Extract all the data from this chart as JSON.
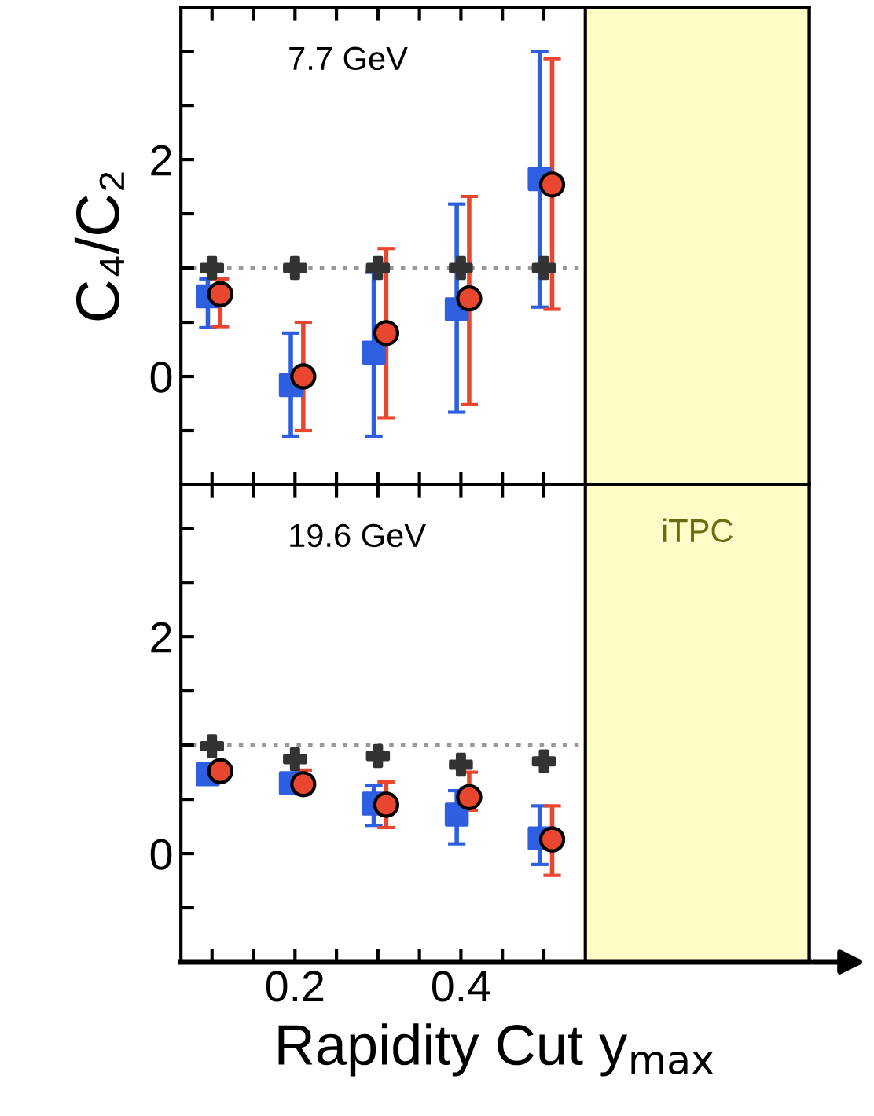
{
  "chart_data": [
    {
      "type": "scatter",
      "ylabel": "C₄/C₂",
      "annotations": [
        "7.7 GeV"
      ],
      "xlim": [
        0.0625,
        0.82
      ],
      "ylim": [
        -1.0,
        3.4
      ],
      "yticks": [
        {
          "value": -1.0,
          "label": null
        },
        {
          "value": -0.5,
          "label": null
        },
        0,
        {
          "value": 0.5,
          "label": null
        },
        {
          "value": 1.0,
          "label": null
        },
        {
          "value": 1.5,
          "label": null
        },
        2,
        {
          "value": 2.5,
          "label": null
        },
        {
          "value": 3.0,
          "label": null
        }
      ],
      "xticks": [
        {
          "value": 0.1,
          "label": null
        },
        {
          "value": 0.15,
          "label": null
        },
        {
          "value": 0.2,
          "label": null
        },
        {
          "value": 0.25,
          "label": null
        },
        {
          "value": 0.3,
          "label": null
        },
        {
          "value": 0.35,
          "label": null
        },
        {
          "value": 0.4,
          "label": null
        },
        {
          "value": 0.45,
          "label": null
        },
        {
          "value": 0.5,
          "label": null
        }
      ],
      "tick_labels": "y",
      "grid": false,
      "legend": false,
      "ref_lines": [
        {
          "axis": "y",
          "value": 1,
          "color": "#999999",
          "line_style": "dotted"
        }
      ],
      "bands": [
        {
          "axis": "x",
          "from": 0.55,
          "to": 0.82,
          "color": "#fffcc8"
        }
      ],
      "series": [
        {
          "color": "#333333",
          "marker": "cross",
          "x": [
            0.1,
            0.2,
            0.3,
            0.4,
            0.5
          ],
          "values": [
            1.0,
            1.0,
            1.0,
            1.0,
            1.0
          ]
        },
        {
          "color": "#2e5fe0",
          "marker": "square",
          "x": [
            0.095,
            0.195,
            0.295,
            0.395,
            0.495
          ],
          "values": [
            0.74,
            -0.08,
            0.22,
            0.62,
            1.82
          ],
          "errors": [
            [
              0.45,
              0.9
            ],
            [
              -0.55,
              0.4
            ],
            [
              -0.55,
              0.96
            ],
            [
              -0.33,
              1.59
            ],
            [
              0.64,
              3.0
            ]
          ]
        },
        {
          "color": "#e8462e",
          "marker": "circle",
          "x": [
            0.11,
            0.21,
            0.31,
            0.41,
            0.51
          ],
          "values": [
            0.76,
            0.0,
            0.4,
            0.72,
            1.77
          ],
          "errors": [
            [
              0.46,
              0.9
            ],
            [
              -0.5,
              0.5
            ],
            [
              -0.38,
              1.18
            ],
            [
              -0.26,
              1.66
            ],
            [
              0.62,
              2.93
            ]
          ]
        }
      ]
    },
    {
      "type": "scatter",
      "xlabel": "Rapidity Cut y$_{max}$",
      "annotations": [
        "19.6 GeV"
      ],
      "xlim": [
        0.0625,
        0.82
      ],
      "ylim": [
        -1.0,
        3.4
      ],
      "yticks": [
        {
          "value": -1.0,
          "label": null
        },
        {
          "value": -0.5,
          "label": null
        },
        0,
        {
          "value": 0.5,
          "label": null
        },
        {
          "value": 1.0,
          "label": null
        },
        {
          "value": 1.5,
          "label": null
        },
        2,
        {
          "value": 2.5,
          "label": null
        },
        {
          "value": 3.0,
          "label": null
        }
      ],
      "xticks": [
        {
          "value": 0.1,
          "label": null
        },
        {
          "value": 0.15,
          "label": null
        },
        0.2,
        {
          "value": 0.25,
          "label": null
        },
        {
          "value": 0.3,
          "label": null
        },
        {
          "value": 0.35,
          "label": null
        },
        0.4,
        {
          "value": 0.45,
          "label": null
        },
        {
          "value": 0.5,
          "label": null
        }
      ],
      "grid": false,
      "legend": false,
      "ref_lines": [
        {
          "axis": "y",
          "value": 1,
          "color": "#999999",
          "line_style": "dotted"
        }
      ],
      "bands": [
        {
          "axis": "x",
          "from": 0.55,
          "to": 0.82,
          "label": "iTPC",
          "color": "#fffcc8"
        }
      ],
      "series": [
        {
          "color": "#333333",
          "marker": "cross",
          "x": [
            0.1,
            0.2,
            0.3,
            0.4,
            0.5
          ],
          "values": [
            0.99,
            0.87,
            0.9,
            0.82,
            0.85
          ]
        },
        {
          "color": "#2e5fe0",
          "marker": "square",
          "x": [
            0.095,
            0.195,
            0.295,
            0.395,
            0.495
          ],
          "values": [
            0.73,
            0.65,
            0.46,
            0.36,
            0.14
          ],
          "errors": [
            null,
            null,
            [
              0.26,
              0.63
            ],
            [
              0.09,
              0.58
            ],
            [
              -0.1,
              0.44
            ]
          ]
        },
        {
          "color": "#e8462e",
          "marker": "circle",
          "x": [
            0.11,
            0.21,
            0.31,
            0.41,
            0.51
          ],
          "values": [
            0.76,
            0.64,
            0.45,
            0.52,
            0.13
          ],
          "errors": [
            null,
            [
              0.55,
              0.77
            ],
            [
              0.24,
              0.66
            ],
            [
              0.4,
              0.75
            ],
            [
              -0.2,
              0.44
            ]
          ]
        }
      ]
    }
  ]
}
